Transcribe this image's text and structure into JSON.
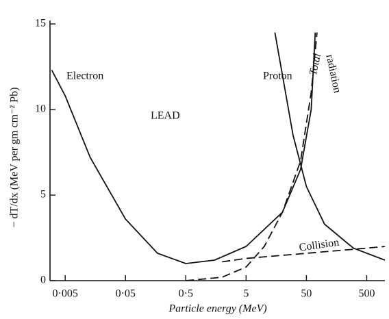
{
  "chart_data": {
    "type": "line",
    "xlog": true,
    "x_label": "Particle energy (MeV)",
    "y_label": "− dT/dx (MeV per gm cm⁻² Pb)",
    "xlim": [
      0.0028,
      1000
    ],
    "ylim": [
      0,
      15
    ],
    "xticks": [
      {
        "value": 0.005,
        "label": "0·005"
      },
      {
        "value": 0.05,
        "label": "0·05"
      },
      {
        "value": 0.5,
        "label": "0·5"
      },
      5,
      50,
      500
    ],
    "yticks": [
      0,
      5,
      10,
      15
    ],
    "series": [
      {
        "name": "Electron",
        "color": "#111111",
        "dashed": false,
        "x": [
          0.003,
          0.005,
          0.013,
          0.05,
          0.17,
          0.5,
          1.5,
          5,
          20,
          40,
          60,
          70
        ],
        "values": [
          12.3,
          10.8,
          7.2,
          3.6,
          1.6,
          1.0,
          1.2,
          2.0,
          4.0,
          6.5,
          10,
          14.5
        ]
      },
      {
        "name": "Proton",
        "color": "#111111",
        "dashed": false,
        "x": [
          15,
          30,
          50,
          100,
          300,
          1000
        ],
        "values": [
          14.5,
          8.5,
          5.5,
          3.3,
          1.9,
          1.2
        ]
      },
      {
        "name": "radiation",
        "color": "#111111",
        "dashed": true,
        "x": [
          0.5,
          2,
          5,
          10,
          20,
          40,
          60,
          75
        ],
        "values": [
          0,
          0.2,
          0.8,
          2,
          4,
          7,
          11,
          14.5
        ]
      },
      {
        "name": "Collision",
        "color": "#111111",
        "dashed": true,
        "x": [
          2,
          5,
          50,
          500,
          1000
        ],
        "values": [
          1.1,
          1.3,
          1.6,
          1.9,
          2.0
        ]
      }
    ],
    "annotations": [
      "LEAD",
      "Total"
    ]
  }
}
